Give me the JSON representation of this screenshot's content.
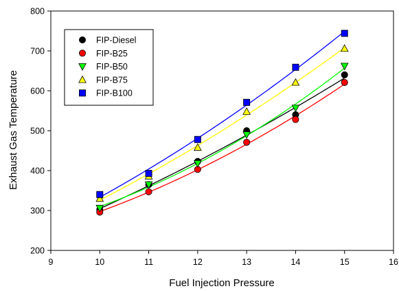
{
  "chart_data": {
    "type": "scatter",
    "title": "",
    "xlabel": "Fuel Injection Pressure",
    "ylabel": "Exhaust Gas Temperature",
    "xlim": [
      9,
      16
    ],
    "ylim": [
      200,
      800
    ],
    "xticks": [
      9,
      10,
      11,
      12,
      13,
      14,
      15,
      16
    ],
    "yticks": [
      200,
      300,
      400,
      500,
      600,
      700,
      800
    ],
    "grid": false,
    "legend_position": "top-left",
    "x": [
      10,
      11,
      12,
      13,
      14,
      15
    ],
    "series": [
      {
        "name": "FIP-Diesel",
        "marker": "circle",
        "color": "#000000",
        "line_color": "#000000",
        "values": [
          302,
          365,
          423,
          500,
          540,
          640
        ]
      },
      {
        "name": "FIP-B25",
        "marker": "circle",
        "color": "#ff0000",
        "line_color": "#ff0000",
        "values": [
          296,
          347,
          403,
          471,
          528,
          621
        ]
      },
      {
        "name": "FIP-B50",
        "marker": "triangle-down",
        "color": "#00ff00",
        "line_color": "#00ff00",
        "values": [
          306,
          365,
          418,
          490,
          557,
          662
        ]
      },
      {
        "name": "FIP-B75",
        "marker": "triangle-up",
        "color": "#ffff00",
        "line_color": "#ffff00",
        "values": [
          330,
          386,
          458,
          548,
          621,
          706
        ]
      },
      {
        "name": "FIP-B100",
        "marker": "square",
        "color": "#0000ff",
        "line_color": "#0000ff",
        "values": [
          340,
          393,
          478,
          571,
          659,
          744
        ]
      }
    ]
  }
}
